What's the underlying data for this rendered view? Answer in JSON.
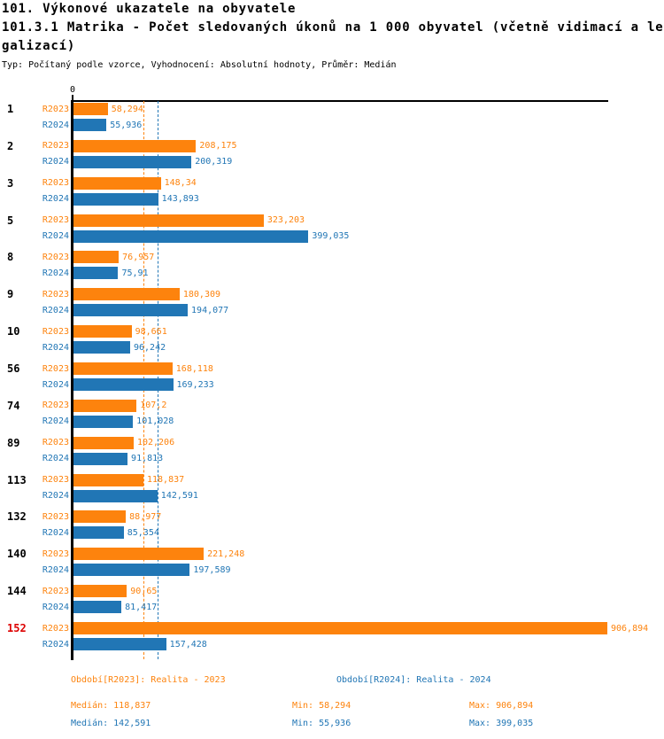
{
  "header": {
    "title_line1": "101. Výkonové ukazatele na obyvatele",
    "title_line2": "101.3.1 Matrika - Počet sledovaných úkonů na 1 000 obyvatel (včetně vidimací a le",
    "title_line3": "galizací)",
    "subtitle": "Typ: Počítaný podle vzorce, Vyhodnocení: Absolutní hodnoty, Průměr: Medián"
  },
  "colors": {
    "r2023_orange": "#fd830d",
    "r2024_blue": "#2176b5",
    "highlight_red": "#dd0000",
    "axis_black": "#000000"
  },
  "chart_data": {
    "type": "bar",
    "orientation": "horizontal",
    "title": "101.3.1 Matrika - Počet sledovaných úkonů na 1 000 obyvatel (včetně vidimací a legalizací)",
    "axis_zero_label": "0",
    "x_range": [
      0,
      906.894
    ],
    "grid": "off",
    "legend_position": "bottom",
    "series_labels": {
      "r2023": "R2023",
      "r2024": "R2024"
    },
    "categories": [
      "1",
      "2",
      "3",
      "5",
      "8",
      "9",
      "10",
      "56",
      "74",
      "89",
      "113",
      "132",
      "140",
      "144",
      "152"
    ],
    "highlighted_category": "152",
    "median_lines": {
      "r2023": 118.837,
      "r2024": 142.591
    },
    "groups": [
      {
        "category": "1",
        "r2023": 58.294,
        "r2023_label": "58,294",
        "r2024": 55.936,
        "r2024_label": "55,936"
      },
      {
        "category": "2",
        "r2023": 208.175,
        "r2023_label": "208,175",
        "r2024": 200.319,
        "r2024_label": "200,319"
      },
      {
        "category": "3",
        "r2023": 148.34,
        "r2023_label": "148,34",
        "r2024": 143.893,
        "r2024_label": "143,893"
      },
      {
        "category": "5",
        "r2023": 323.203,
        "r2023_label": "323,203",
        "r2024": 399.035,
        "r2024_label": "399,035"
      },
      {
        "category": "8",
        "r2023": 76.957,
        "r2023_label": "76,957",
        "r2024": 75.91,
        "r2024_label": "75,91"
      },
      {
        "category": "9",
        "r2023": 180.309,
        "r2023_label": "180,309",
        "r2024": 194.077,
        "r2024_label": "194,077"
      },
      {
        "category": "10",
        "r2023": 98.661,
        "r2023_label": "98,661",
        "r2024": 96.242,
        "r2024_label": "96,242"
      },
      {
        "category": "56",
        "r2023": 168.118,
        "r2023_label": "168,118",
        "r2024": 169.233,
        "r2024_label": "169,233"
      },
      {
        "category": "74",
        "r2023": 107.2,
        "r2023_label": "107,2",
        "r2024": 101.028,
        "r2024_label": "101,028"
      },
      {
        "category": "89",
        "r2023": 102.206,
        "r2023_label": "102,206",
        "r2024": 91.813,
        "r2024_label": "91,813"
      },
      {
        "category": "113",
        "r2023": 118.837,
        "r2023_label": "118,837",
        "r2024": 142.591,
        "r2024_label": "142,591"
      },
      {
        "category": "132",
        "r2023": 88.977,
        "r2023_label": "88,977",
        "r2024": 85.354,
        "r2024_label": "85,354"
      },
      {
        "category": "140",
        "r2023": 221.248,
        "r2023_label": "221,248",
        "r2024": 197.589,
        "r2024_label": "197,589"
      },
      {
        "category": "144",
        "r2023": 90.65,
        "r2023_label": "90,65",
        "r2024": 81.417,
        "r2024_label": "81,417"
      },
      {
        "category": "152",
        "r2023": 906.894,
        "r2023_label": "906,894",
        "r2024": 157.428,
        "r2024_label": "157,428"
      }
    ]
  },
  "legend": [
    {
      "label": "Období[R2023]: Realita - 2023"
    },
    {
      "label": "Období[R2024]: Realita - 2024"
    }
  ],
  "stats": {
    "r2023": {
      "median": "Medián: 118,837",
      "min": "Min: 58,294",
      "max": "Max: 906,894"
    },
    "r2024": {
      "median": "Medián: 142,591",
      "min": "Min: 55,936",
      "max": "Max: 399,035"
    }
  }
}
